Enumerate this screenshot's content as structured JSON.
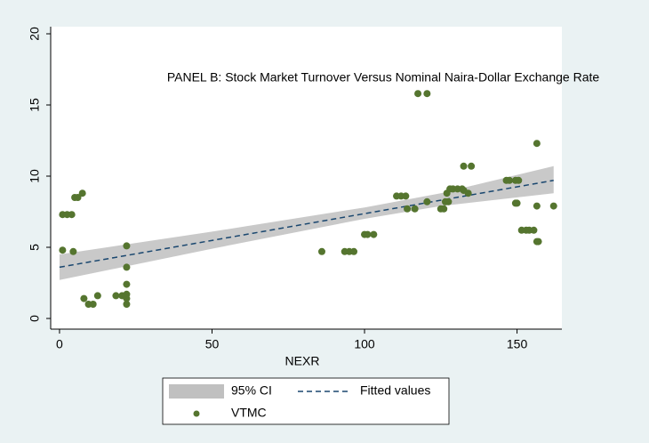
{
  "chart_data": {
    "type": "scatter",
    "title": "PANEL B: Stock Market Turnover Versus Nominal Naira-Dollar Exchange Rate",
    "x_label": "NEXR",
    "xlim": [
      -2.9,
      164.7
    ],
    "xticks": [
      0,
      50,
      100,
      150
    ],
    "ylim": [
      -0.75,
      20.5
    ],
    "yticks": [
      0,
      5,
      10,
      15,
      20
    ],
    "grid": false,
    "series": [
      {
        "name": "95% CI",
        "type": "band",
        "color": "#c0c0c0",
        "x": [
          0,
          50,
          100,
          125,
          162
        ],
        "lower": [
          2.7,
          4.9,
          7.0,
          7.9,
          8.8
        ],
        "upper": [
          4.5,
          6.1,
          7.8,
          8.8,
          10.7
        ]
      },
      {
        "name": "Fitted values",
        "type": "line",
        "color": "#1a476f",
        "x": [
          0,
          162
        ],
        "values": [
          3.6,
          9.7
        ]
      },
      {
        "name": "VTMC",
        "type": "scatter",
        "color": "#55752f",
        "x": [
          1,
          1,
          2.5,
          4,
          4.5,
          5,
          6,
          7.5,
          8,
          9.5,
          11,
          12.5,
          18.5,
          20.5,
          22,
          22,
          22,
          22,
          22,
          22,
          86,
          93.5,
          95,
          96.5,
          100,
          101,
          103,
          110.5,
          112,
          113.5,
          114,
          116.5,
          117.5,
          120.5,
          120.5,
          125,
          126,
          126.5,
          127.5,
          127,
          128,
          129,
          130.5,
          132,
          132.5,
          132.5,
          135,
          134,
          146.5,
          147.5,
          149.5,
          150.5,
          149.5,
          150,
          151.5,
          153,
          154,
          155.5,
          156.5,
          156.5,
          156.5,
          157,
          162
        ],
        "values": [
          4.8,
          7.3,
          7.3,
          7.3,
          4.7,
          8.5,
          8.5,
          8.8,
          1.4,
          1.0,
          1.0,
          1.6,
          1.6,
          1.6,
          5.1,
          3.6,
          2.4,
          1.7,
          1.4,
          1.0,
          4.7,
          4.7,
          4.7,
          4.7,
          5.9,
          5.9,
          5.9,
          8.6,
          8.6,
          8.6,
          7.7,
          7.7,
          15.8,
          15.8,
          8.2,
          7.7,
          7.7,
          8.2,
          8.2,
          8.8,
          9.1,
          9.1,
          9.1,
          9.1,
          9.0,
          10.7,
          10.7,
          8.8,
          9.7,
          9.7,
          9.7,
          9.7,
          8.1,
          8.1,
          6.2,
          6.2,
          6.2,
          6.2,
          12.3,
          7.9,
          5.4,
          5.4,
          7.9
        ]
      }
    ]
  }
}
